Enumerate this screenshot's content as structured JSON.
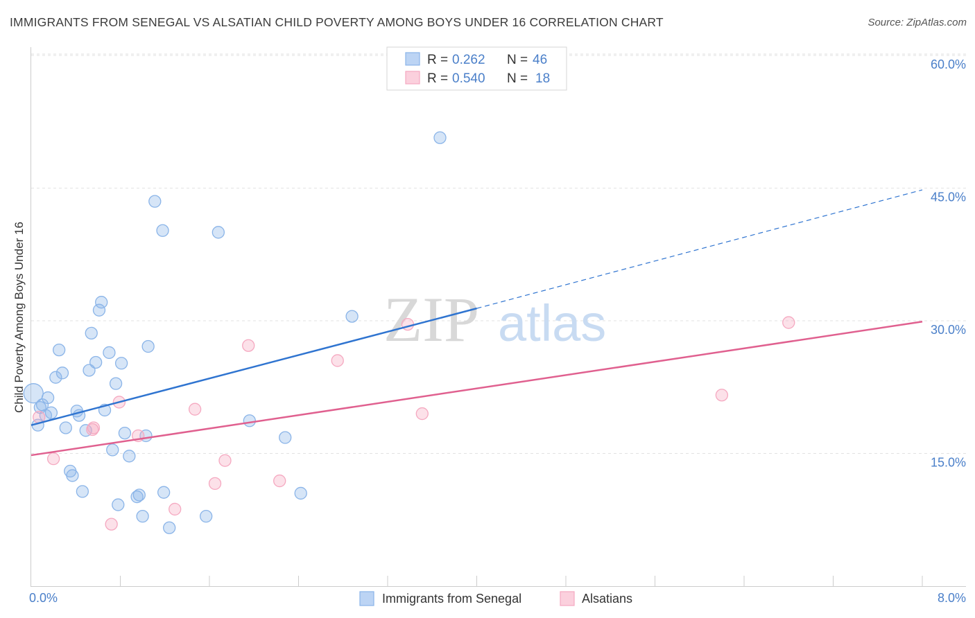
{
  "chart_data": {
    "type": "scatter",
    "title": "IMMIGRANTS FROM SENEGAL VS ALSATIAN CHILD POVERTY AMONG BOYS UNDER 16 CORRELATION CHART",
    "source": "Source: ZipAtlas.com",
    "ylabel": "Child Poverty Among Boys Under 16",
    "xlabel": "",
    "xlim": [
      0,
      8
    ],
    "ylim": [
      0,
      60
    ],
    "x_tick_labels": [
      "0.0%",
      "8.0%"
    ],
    "y_ticks": [
      15,
      30,
      45,
      60
    ],
    "y_tick_labels": [
      "15.0%",
      "30.0%",
      "45.0%",
      "60.0%"
    ],
    "watermark": {
      "zip": "ZIP",
      "atlas": "atlas"
    },
    "legend": {
      "rows": [
        {
          "r_label": "R =",
          "r_value": "0.262",
          "n_label": "N =",
          "n_value": "46"
        },
        {
          "r_label": "R =",
          "r_value": "0.540",
          "n_label": "N =",
          "n_value": "18"
        }
      ]
    },
    "series": [
      {
        "name": "Immigrants from Senegal",
        "color": "#8ab4e8",
        "line_color": "#2f74d0",
        "trend": {
          "x0": 0,
          "y0": 18.2,
          "x1": 4.0,
          "y1": 31.4,
          "dash_to_x": 8,
          "dash_to_y": 44.8
        },
        "points": [
          [
            0.02,
            21.8
          ],
          [
            0.06,
            18.2
          ],
          [
            0.1,
            20.5
          ],
          [
            0.13,
            19.3
          ],
          [
            0.15,
            21.3
          ],
          [
            0.18,
            19.6
          ],
          [
            0.22,
            23.6
          ],
          [
            0.25,
            26.7
          ],
          [
            0.28,
            24.1
          ],
          [
            0.31,
            17.9
          ],
          [
            0.35,
            13.0
          ],
          [
            0.37,
            12.5
          ],
          [
            0.41,
            19.8
          ],
          [
            0.43,
            19.3
          ],
          [
            0.46,
            10.7
          ],
          [
            0.49,
            17.6
          ],
          [
            0.52,
            24.4
          ],
          [
            0.54,
            28.6
          ],
          [
            0.58,
            25.3
          ],
          [
            0.61,
            31.2
          ],
          [
            0.63,
            32.1
          ],
          [
            0.66,
            19.9
          ],
          [
            0.7,
            26.4
          ],
          [
            0.73,
            15.4
          ],
          [
            0.76,
            22.9
          ],
          [
            0.78,
            9.2
          ],
          [
            0.81,
            25.2
          ],
          [
            0.84,
            17.3
          ],
          [
            0.88,
            14.7
          ],
          [
            0.95,
            10.1
          ],
          [
            0.97,
            10.3
          ],
          [
            1.0,
            7.9
          ],
          [
            1.03,
            17.0
          ],
          [
            1.05,
            27.1
          ],
          [
            1.11,
            43.5
          ],
          [
            1.18,
            40.2
          ],
          [
            1.19,
            10.6
          ],
          [
            1.24,
            6.6
          ],
          [
            1.57,
            7.9
          ],
          [
            1.68,
            40.0
          ],
          [
            1.96,
            18.7
          ],
          [
            2.28,
            16.8
          ],
          [
            2.42,
            10.5
          ],
          [
            2.88,
            30.5
          ],
          [
            3.67,
            50.7
          ],
          [
            0.08,
            20.2
          ]
        ]
      },
      {
        "name": "Alsatians",
        "color": "#f5a8c0",
        "line_color": "#e0608f",
        "trend": {
          "x0": 0,
          "y0": 14.8,
          "x1": 8,
          "y1": 29.9
        },
        "points": [
          [
            0.07,
            19.1
          ],
          [
            0.2,
            14.4
          ],
          [
            0.56,
            17.9
          ],
          [
            0.55,
            17.7
          ],
          [
            0.72,
            7.0
          ],
          [
            0.79,
            20.8
          ],
          [
            0.96,
            17.0
          ],
          [
            1.29,
            8.7
          ],
          [
            1.47,
            20.0
          ],
          [
            1.65,
            11.6
          ],
          [
            1.74,
            14.2
          ],
          [
            1.95,
            27.2
          ],
          [
            2.23,
            11.9
          ],
          [
            2.75,
            25.5
          ],
          [
            3.38,
            29.6
          ],
          [
            3.51,
            19.5
          ],
          [
            6.2,
            21.6
          ],
          [
            6.8,
            29.8
          ]
        ]
      }
    ]
  }
}
